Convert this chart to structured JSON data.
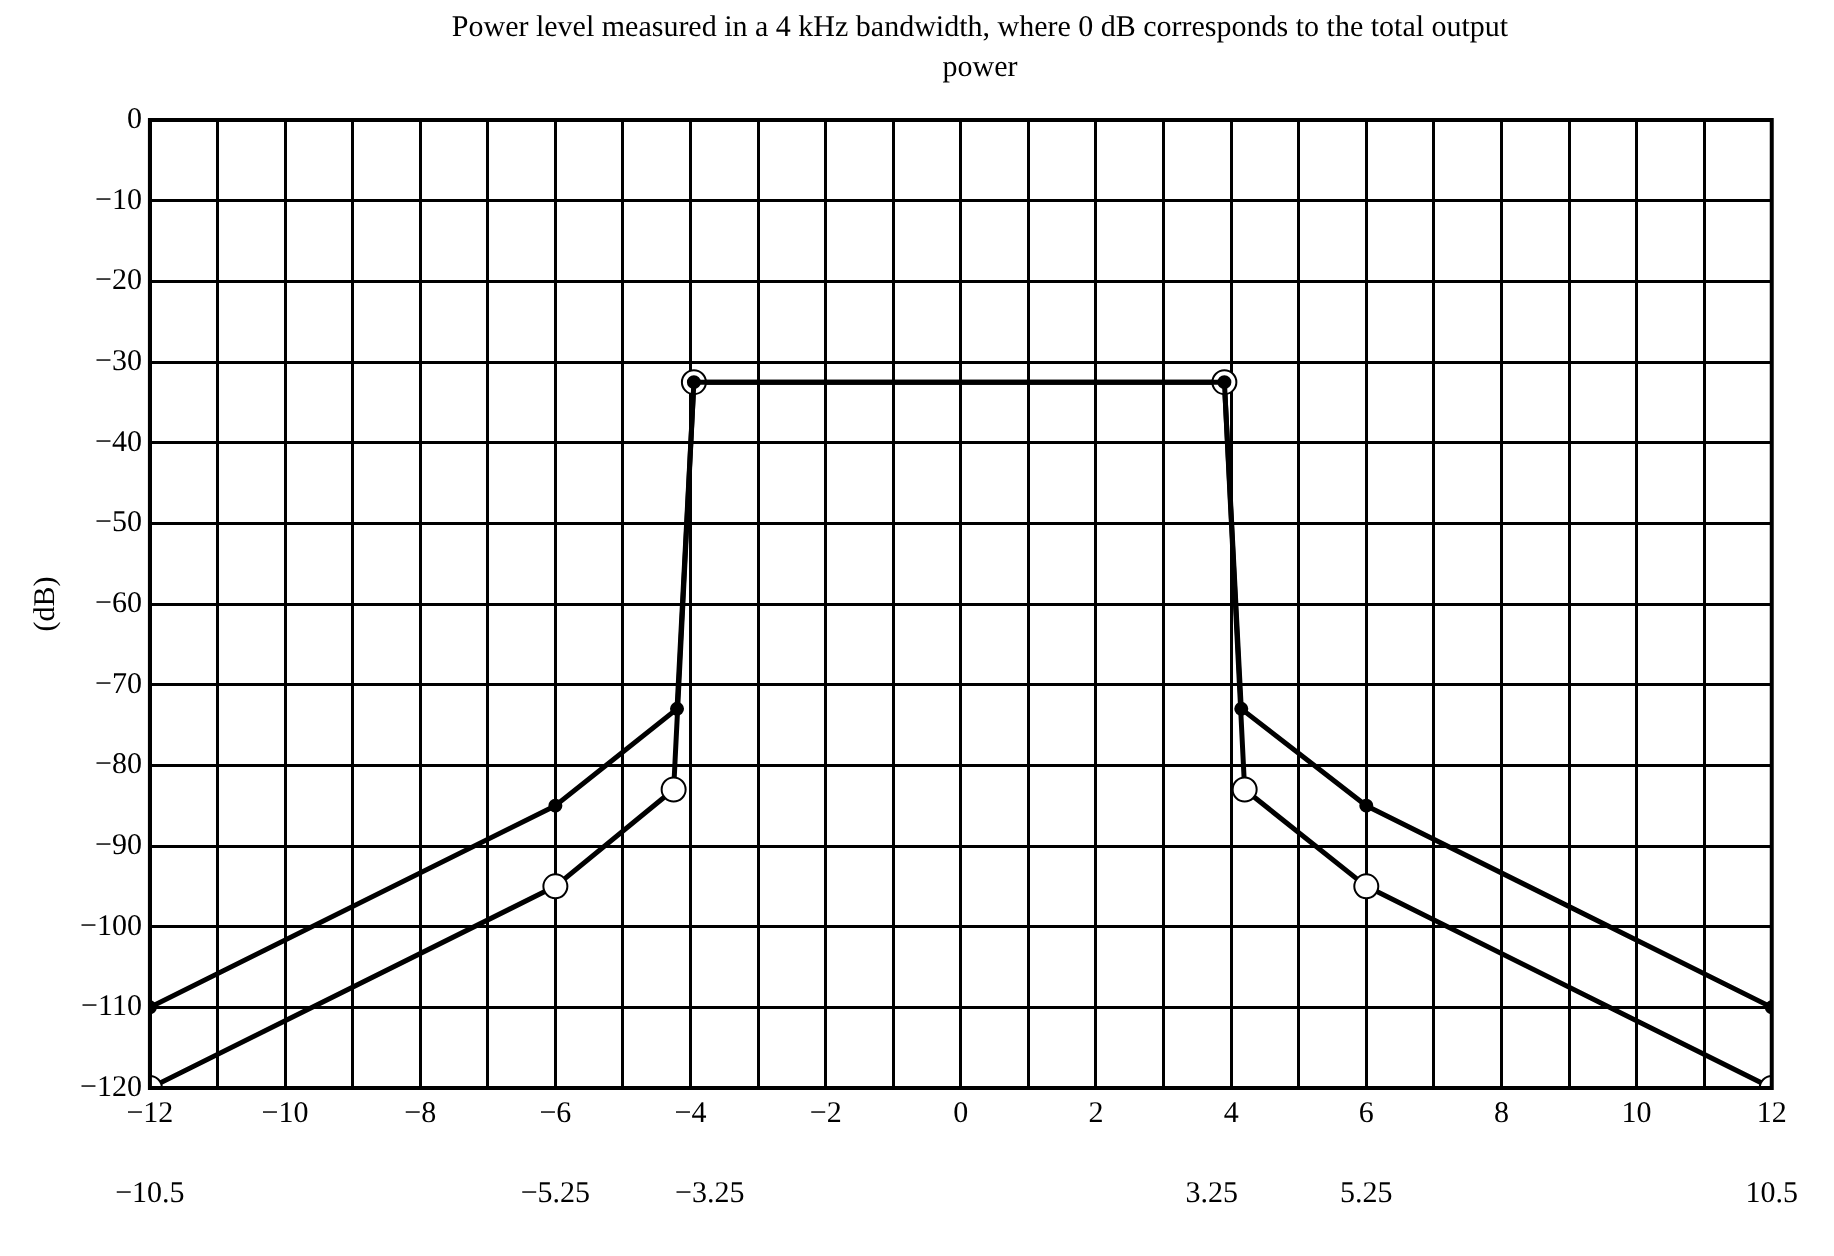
{
  "chart_data": {
    "type": "line",
    "title": "Power level measured in a 4 kHz bandwidth, where 0 dB corresponds to the total output power",
    "ylabel": "(dB)",
    "series": [
      {
        "color": "#000000",
        "marker": "circle",
        "x": [
          -12,
          -6,
          -4.2,
          -3.95,
          3.9,
          4.15,
          6,
          12
        ],
        "values": [
          -110,
          -85,
          -73,
          -32.5,
          -32.5,
          -73,
          -85,
          -110
        ]
      },
      {
        "color": "#000000",
        "marker": "circle",
        "x": [
          -12,
          -6,
          -4.25,
          -3.95,
          3.9,
          4.2,
          6,
          12
        ],
        "values": [
          -120,
          -95,
          -83,
          -32.5,
          -32.5,
          -83,
          -95,
          -120
        ]
      }
    ],
    "xlim": [
      -12,
      12
    ],
    "xticks": [
      {
        "value": -12,
        "label": "−12"
      },
      {
        "value": -11,
        "label": null
      },
      {
        "value": -10,
        "label": "−10"
      },
      {
        "value": -9,
        "label": null
      },
      {
        "value": -8,
        "label": "−8"
      },
      {
        "value": -7,
        "label": null
      },
      {
        "value": -6,
        "label": "−6"
      },
      {
        "value": -5,
        "label": null
      },
      {
        "value": -4,
        "label": "−4"
      },
      {
        "value": -3,
        "label": null
      },
      {
        "value": -2,
        "label": "−2"
      },
      {
        "value": -1,
        "label": null
      },
      0,
      {
        "value": 1,
        "label": null
      },
      2,
      {
        "value": 3,
        "label": null
      },
      4,
      {
        "value": 5,
        "label": null
      },
      6,
      {
        "value": 7,
        "label": null
      },
      8,
      {
        "value": 9,
        "label": null
      },
      10,
      {
        "value": 11,
        "label": null
      },
      12
    ],
    "x2lim": [
      -10.5,
      10.5
    ],
    "x2ticks": [
      {
        "value": -10.5,
        "label": "−10.5"
      },
      {
        "value": -5.25,
        "label": "−5.25"
      },
      {
        "value": -3.25,
        "label": "−3.25"
      },
      3.25,
      5.25,
      10.5
    ],
    "ylim": [
      -120,
      0
    ],
    "yticks": [
      0,
      {
        "value": -10,
        "label": "−10"
      },
      {
        "value": -20,
        "label": "−20"
      },
      {
        "value": -30,
        "label": "−30"
      },
      {
        "value": -40,
        "label": "−40"
      },
      {
        "value": -50,
        "label": "−50"
      },
      {
        "value": -60,
        "label": "−60"
      },
      {
        "value": -70,
        "label": "−70"
      },
      {
        "value": -80,
        "label": "−80"
      },
      {
        "value": -90,
        "label": "−90"
      },
      {
        "value": -100,
        "label": "−100"
      },
      {
        "value": -110,
        "label": "−110"
      },
      {
        "value": -120,
        "label": "−120"
      }
    ],
    "grid": true,
    "legend": false
  }
}
